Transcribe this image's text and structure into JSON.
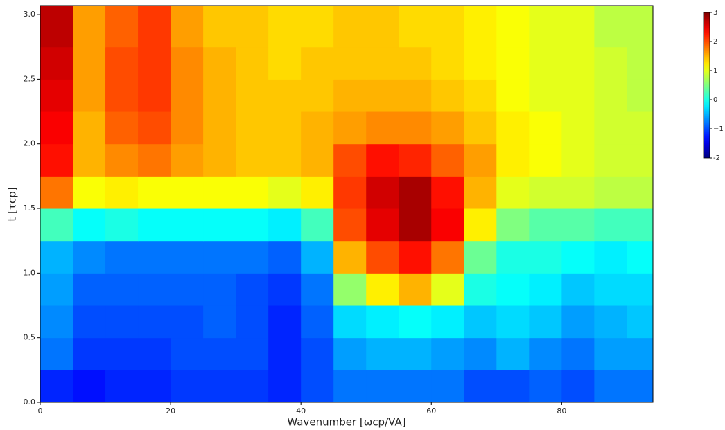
{
  "chart_data": {
    "type": "heatmap",
    "x_label": "Wavenumber [ωcp/VA]",
    "y_label": "t  [τcp]",
    "xlim": [
      0,
      94
    ],
    "ylim": [
      0,
      3.07
    ],
    "xticks": [
      0,
      20,
      40,
      60,
      80
    ],
    "yticks": [
      {
        "value": 0,
        "label": "0.0"
      },
      0.5,
      {
        "value": 1,
        "label": "1.0"
      },
      1.5,
      {
        "value": 2,
        "label": "2.0"
      },
      2.5,
      {
        "value": 3,
        "label": "3.0"
      }
    ],
    "colormap": "jet",
    "zlim": [
      -2,
      3
    ],
    "zticks": [
      -2,
      {
        "value": -1,
        "label": "−1"
      },
      0,
      1,
      2,
      3
    ],
    "xbins": [
      0,
      5,
      10,
      15,
      20,
      25,
      30,
      35,
      40,
      45,
      50,
      55,
      60,
      65,
      70,
      75,
      80,
      85,
      90,
      94
    ],
    "ybins": [
      0,
      0.25,
      0.5,
      0.75,
      1,
      1.25,
      1.5,
      1.75,
      2,
      2.25,
      2.5,
      2.75,
      3,
      3.07
    ],
    "z": [
      [
        -1.2,
        -1.3,
        -1.2,
        -1.2,
        -1.1,
        -1.1,
        -1.1,
        -1.2,
        -1.0,
        -0.8,
        -0.8,
        -0.8,
        -0.8,
        -1.0,
        -1.0,
        -0.9,
        -1.0,
        -0.8,
        -0.8
      ],
      [
        -0.8,
        -1.1,
        -1.1,
        -1.1,
        -1.0,
        -1.0,
        -1.0,
        -1.2,
        -1.0,
        -0.6,
        -0.5,
        -0.5,
        -0.6,
        -0.7,
        -0.5,
        -0.7,
        -0.8,
        -0.6,
        -0.6
      ],
      [
        -0.7,
        -1.0,
        -1.0,
        -1.0,
        -1.0,
        -0.9,
        -1.0,
        -1.2,
        -0.9,
        -0.3,
        -0.2,
        -0.1,
        -0.2,
        -0.4,
        -0.3,
        -0.4,
        -0.6,
        -0.5,
        -0.4
      ],
      [
        -0.6,
        -0.9,
        -0.9,
        -0.9,
        -0.9,
        -0.9,
        -1.0,
        -1.1,
        -0.8,
        0.6,
        1.2,
        1.5,
        1.0,
        0,
        -0.1,
        -0.2,
        -0.4,
        -0.3,
        -0.3
      ],
      [
        -0.5,
        -0.7,
        -0.8,
        -0.8,
        -0.8,
        -0.8,
        -0.8,
        -0.9,
        -0.5,
        1.5,
        2.0,
        2.3,
        1.8,
        0.4,
        0,
        0,
        -0.1,
        -0.2,
        -0.1
      ],
      [
        0.2,
        -0.1,
        0,
        -0.1,
        -0.1,
        -0.1,
        -0.1,
        -0.2,
        0.2,
        2.0,
        2.5,
        2.8,
        2.4,
        1.2,
        0.5,
        0.3,
        0.3,
        0.2,
        0.2
      ],
      [
        1.8,
        1.1,
        1.2,
        1.1,
        1.1,
        1.1,
        1.1,
        1.0,
        1.2,
        2.1,
        2.6,
        2.8,
        2.3,
        1.5,
        1.0,
        0.9,
        0.9,
        0.8,
        0.8
      ],
      [
        2.3,
        1.5,
        1.7,
        1.8,
        1.6,
        1.5,
        1.4,
        1.4,
        1.5,
        2.0,
        2.3,
        2.2,
        1.9,
        1.6,
        1.2,
        1.1,
        1.0,
        0.9,
        0.9
      ],
      [
        2.4,
        1.5,
        1.9,
        2.0,
        1.7,
        1.5,
        1.4,
        1.4,
        1.5,
        1.6,
        1.7,
        1.7,
        1.6,
        1.4,
        1.2,
        1.1,
        1.0,
        0.9,
        0.9
      ],
      [
        2.5,
        1.6,
        2.0,
        2.1,
        1.7,
        1.5,
        1.4,
        1.4,
        1.4,
        1.5,
        1.5,
        1.5,
        1.4,
        1.3,
        1.1,
        1.0,
        1.0,
        0.9,
        0.8
      ],
      [
        2.6,
        1.6,
        2.0,
        2.1,
        1.7,
        1.5,
        1.4,
        1.3,
        1.4,
        1.4,
        1.4,
        1.4,
        1.3,
        1.2,
        1.1,
        1.0,
        1.0,
        0.9,
        0.8
      ],
      [
        2.7,
        1.6,
        1.9,
        2.1,
        1.6,
        1.4,
        1.4,
        1.3,
        1.3,
        1.4,
        1.4,
        1.3,
        1.3,
        1.2,
        1.1,
        1.0,
        1.0,
        0.8,
        0.8
      ],
      [
        2.7,
        1.6,
        1.9,
        2.1,
        1.6,
        1.4,
        1.4,
        1.3,
        1.3,
        1.4,
        1.4,
        1.3,
        1.3,
        1.2,
        1.1,
        1.0,
        1.0,
        0.8,
        0.8
      ]
    ]
  }
}
